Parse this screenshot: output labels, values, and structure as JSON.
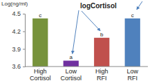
{
  "chart_data": {
    "type": "bar",
    "title": "logCortisol",
    "y_label": "Log(ng/ml)",
    "categories": [
      "High Cortisol",
      "Low Cortisol",
      "High RFI",
      "Low RFI"
    ],
    "values": [
      4.42,
      3.7,
      4.09,
      4.42
    ],
    "colors": [
      "#77933c",
      "#7030a0",
      "#c0504d",
      "#4f81bd"
    ],
    "annotations": [
      "c",
      "a",
      "b",
      "c"
    ],
    "ylim": [
      3.6,
      4.5
    ],
    "yticks": [
      3.6,
      3.9,
      4.2,
      4.5
    ],
    "grid": false
  }
}
